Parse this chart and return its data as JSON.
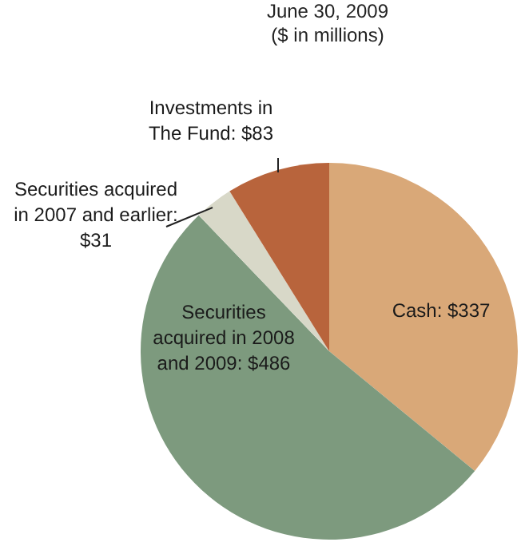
{
  "chart_data": {
    "type": "pie",
    "title": "June 30, 2009",
    "subtitle": "($ in millions)",
    "categories": [
      "Cash: $337",
      "Securities acquired in 2008 and 2009: $486",
      "Securities acquired in 2007 and earlier: $31",
      "Investments in The Fund: $83"
    ],
    "values": [
      337,
      486,
      31,
      83
    ],
    "colors": [
      "#d9a878",
      "#7d9a7e",
      "#d8d8c8",
      "#b8643c"
    ],
    "legend": false
  }
}
